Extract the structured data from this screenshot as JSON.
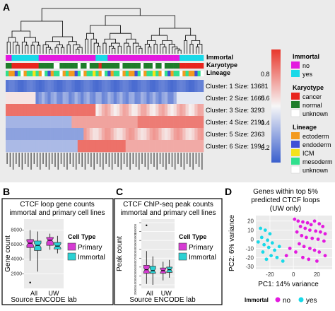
{
  "panel_a": {
    "letter": "A",
    "track_labels": [
      "Immortal",
      "Karyotype",
      "Lineage"
    ],
    "cluster_labels": [
      "Cluster: 1 Size: 13681",
      "Cluster: 2 Size: 1665",
      "Cluster: 3 Size: 3293",
      "Cluster: 4 Size: 2191",
      "Cluster: 5 Size: 2363",
      "Cluster: 6 Size: 1994"
    ],
    "colorbar_ticks": [
      "0.8",
      "0.6",
      "0.4",
      "0.2"
    ],
    "legend": {
      "immortal": {
        "title": "Immortal",
        "items": [
          {
            "label": "no",
            "color": "#e31adf"
          },
          {
            "label": "yes",
            "color": "#19d9e8"
          }
        ]
      },
      "karyotype": {
        "title": "Karyotype",
        "items": [
          {
            "label": "cancer",
            "color": "#e8251e"
          },
          {
            "label": "normal",
            "color": "#1f7d2b"
          },
          {
            "label": "unknown",
            "color": "#ffffff"
          }
        ]
      },
      "lineage": {
        "title": "Lineage",
        "items": [
          {
            "label": "ectoderm",
            "color": "#f39a1f"
          },
          {
            "label": "endoderm",
            "color": "#3f4fd6"
          },
          {
            "label": "ICM",
            "color": "#f5e21c"
          },
          {
            "label": "mesoderm",
            "color": "#31e08e"
          },
          {
            "label": "unknown",
            "color": "#ffffff"
          }
        ]
      }
    },
    "colors": {
      "low": "#3a5fcd",
      "mid": "#f7f7f7",
      "high": "#e8372c"
    }
  },
  "panel_b": {
    "letter": "B",
    "title_line1": "CTCF loop gene counts",
    "title_line2": "immortal and primary cell lines",
    "ylabel": "Gene count",
    "xlabel": "Source ENCODE lab",
    "legend_title": "Cell Type",
    "legend_items": [
      "Primary",
      "Immortal"
    ]
  },
  "panel_c": {
    "letter": "C",
    "title_line1": "CTCF ChIP-seq peak counts",
    "title_line2": "immortal and primary cell lines",
    "ylabel": "Peak count",
    "xlabel": "Source ENCODE lab",
    "legend_title": "Cell Type",
    "legend_items": [
      "Primary",
      "Immortal"
    ]
  },
  "panel_d": {
    "letter": "D",
    "title_line1": "Genes within top 5%",
    "title_line2": "predicted CTCF loops",
    "title_line3": "(UW only)",
    "xlabel": "PC1: 14% variance",
    "ylabel": "PC2: 6% variance",
    "legend_title": "Immortal",
    "legend_items": [
      "no",
      "yes"
    ]
  },
  "chart_data": [
    {
      "type": "box",
      "panel": "B",
      "categories": [
        "All",
        "UW"
      ],
      "yticks": [
        "2000",
        "4000",
        "6000",
        "8000"
      ],
      "ylim": [
        0,
        9500
      ],
      "series": [
        {
          "name": "Primary",
          "color": "#d63bd3",
          "boxes": [
            {
              "q1": 5600,
              "median": 6200,
              "q3": 6700,
              "lo": 3800,
              "hi": 8000
            },
            {
              "q1": 5900,
              "median": 6600,
              "q3": 7000,
              "lo": 5300,
              "hi": 7500
            }
          ]
        },
        {
          "name": "Immortal",
          "color": "#2bd1d3",
          "boxes": [
            {
              "q1": 5200,
              "median": 5900,
              "q3": 6500,
              "lo": 2300,
              "hi": 7800
            },
            {
              "q1": 5400,
              "median": 5800,
              "q3": 6300,
              "lo": 4800,
              "hi": 7200
            }
          ]
        }
      ],
      "outliers": [
        {
          "x": "All",
          "y": 800
        }
      ]
    },
    {
      "type": "box",
      "panel": "C",
      "categories": [
        "All",
        "UW"
      ],
      "yticks": [
        "30000",
        "40000",
        "50000",
        "60000",
        "70000",
        "80000",
        "90000",
        "100000"
      ],
      "ylim": [
        26000,
        104000
      ],
      "series": [
        {
          "name": "Primary",
          "color": "#d63bd3",
          "boxes": [
            {
              "q1": 43000,
              "median": 47000,
              "q3": 52000,
              "lo": 31000,
              "hi": 68000
            },
            {
              "q1": 43000,
              "median": 46000,
              "q3": 49000,
              "lo": 35000,
              "hi": 56000
            }
          ]
        },
        {
          "name": "Immortal",
          "color": "#2bd1d3",
          "boxes": [
            {
              "q1": 43000,
              "median": 46000,
              "q3": 51000,
              "lo": 30000,
              "hi": 62000
            },
            {
              "q1": 44000,
              "median": 47000,
              "q3": 50000,
              "lo": 38000,
              "hi": 58000
            }
          ]
        }
      ],
      "outliers": [
        {
          "x": "All",
          "y": 97000
        }
      ]
    },
    {
      "type": "scatter",
      "panel": "D",
      "xticks": [
        "-20",
        "0",
        "20"
      ],
      "yticks": [
        "20",
        "10",
        "0",
        "-10",
        "-20",
        "-30"
      ],
      "xlim": [
        -32,
        33
      ],
      "ylim": [
        -33,
        26
      ],
      "series": [
        {
          "name": "no",
          "color": "#e31adf",
          "points": [
            [
              1,
              22
            ],
            [
              4,
              20
            ],
            [
              8,
              19
            ],
            [
              12,
              18
            ],
            [
              15,
              16
            ],
            [
              18,
              20
            ],
            [
              22,
              17
            ],
            [
              25,
              14
            ],
            [
              6,
              14
            ],
            [
              10,
              12
            ],
            [
              14,
              10
            ],
            [
              19,
              9
            ],
            [
              23,
              8
            ],
            [
              27,
              6
            ],
            [
              3,
              8
            ],
            [
              7,
              4
            ],
            [
              11,
              2
            ],
            [
              16,
              1
            ],
            [
              21,
              0
            ],
            [
              26,
              -2
            ],
            [
              5,
              -5
            ],
            [
              9,
              -8
            ],
            [
              14,
              -10
            ],
            [
              18,
              -12
            ],
            [
              22,
              -14
            ],
            [
              27,
              -18
            ],
            [
              2,
              -14
            ],
            [
              8,
              -20
            ],
            [
              13,
              -22
            ],
            [
              20,
              -24
            ],
            [
              -3,
              -10
            ],
            [
              -6,
              -18
            ]
          ]
        },
        {
          "name": "yes",
          "color": "#19d9e8",
          "points": [
            [
              -28,
              12
            ],
            [
              -24,
              10
            ],
            [
              -20,
              6
            ],
            [
              -27,
              2
            ],
            [
              -22,
              -1
            ],
            [
              -18,
              -4
            ],
            [
              -25,
              -6
            ],
            [
              -21,
              -9
            ],
            [
              -16,
              -12
            ],
            [
              -12,
              -8
            ],
            [
              -26,
              -14
            ],
            [
              -19,
              -18
            ],
            [
              -14,
              -20
            ],
            [
              -9,
              -24
            ],
            [
              -23,
              -22
            ],
            [
              -30,
              -3
            ]
          ]
        }
      ]
    }
  ]
}
